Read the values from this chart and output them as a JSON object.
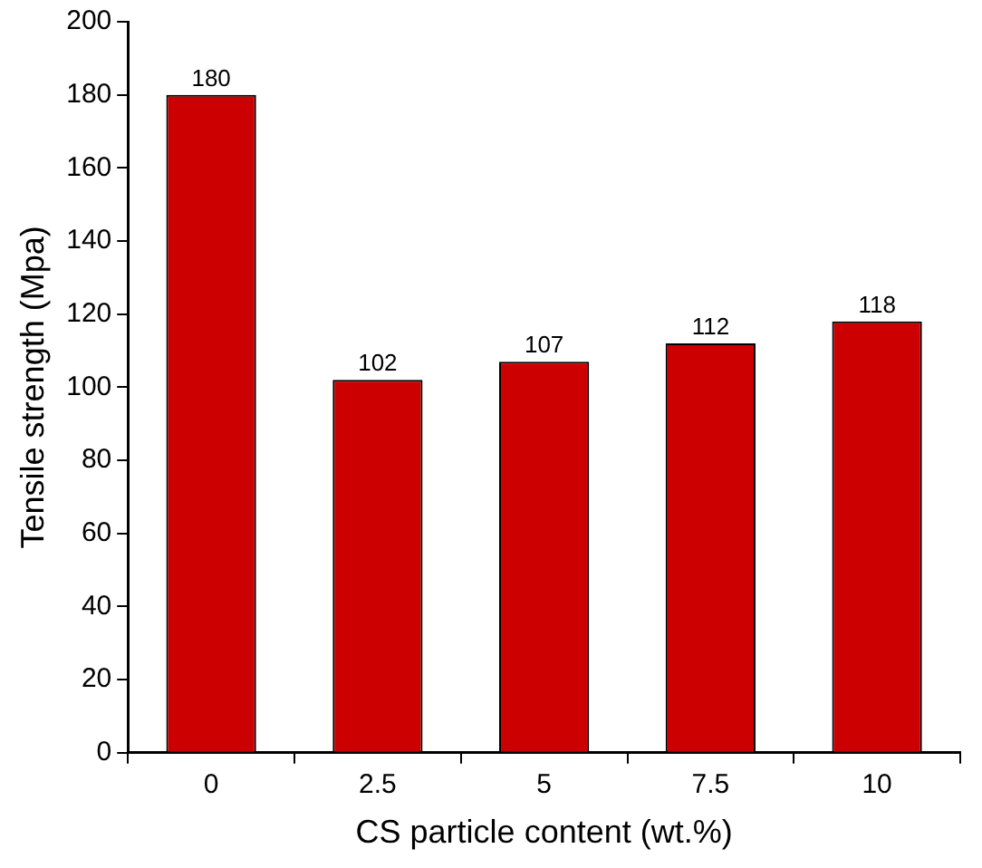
{
  "chart_data": {
    "type": "bar",
    "xlabel": "CS particle content (wt.%)",
    "ylabel": "Tensile strength (Mpa)",
    "categories": [
      "0",
      "2.5",
      "5",
      "7.5",
      "10"
    ],
    "values": [
      180,
      102,
      107,
      112,
      118
    ],
    "color": "#cc0000",
    "ylim": [
      0,
      200
    ],
    "yticks": [
      0,
      20,
      40,
      60,
      80,
      100,
      120,
      140,
      160,
      180,
      200
    ],
    "data_labels": true,
    "grid": false,
    "legend": false
  }
}
